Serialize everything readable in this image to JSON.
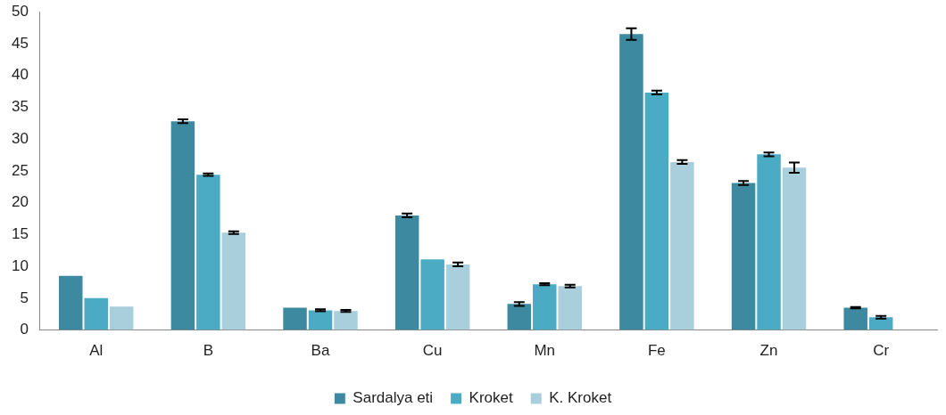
{
  "chart_data": {
    "type": "bar",
    "categories": [
      "Al",
      "B",
      "Ba",
      "Cu",
      "Mn",
      "Fe",
      "Zn",
      "Cr"
    ],
    "series": [
      {
        "name": "Sardalya eti",
        "color": "#3d8aa0",
        "values": [
          8.5,
          32.8,
          3.5,
          18.0,
          4.1,
          46.5,
          23.1,
          3.5
        ],
        "errors": [
          null,
          0.3,
          null,
          0.3,
          0.3,
          0.9,
          0.3,
          0.1
        ]
      },
      {
        "name": "Kroket",
        "color": "#4babc5",
        "values": [
          5.0,
          24.4,
          3.1,
          11.1,
          7.2,
          37.3,
          27.6,
          2.0
        ],
        "errors": [
          null,
          0.2,
          0.15,
          null,
          0.15,
          0.3,
          0.3,
          0.2
        ]
      },
      {
        "name": "K. Kroket",
        "color": "#a9cedc",
        "values": [
          3.7,
          15.3,
          3.0,
          10.3,
          6.9,
          26.4,
          25.5,
          null
        ],
        "errors": [
          null,
          0.2,
          0.15,
          0.3,
          0.2,
          0.3,
          0.8,
          null
        ]
      }
    ],
    "ylim": [
      0,
      50
    ],
    "yticks": [
      0,
      5,
      10,
      15,
      20,
      25,
      30,
      35,
      40,
      45,
      50
    ],
    "grid": false,
    "legend": "bottom"
  }
}
